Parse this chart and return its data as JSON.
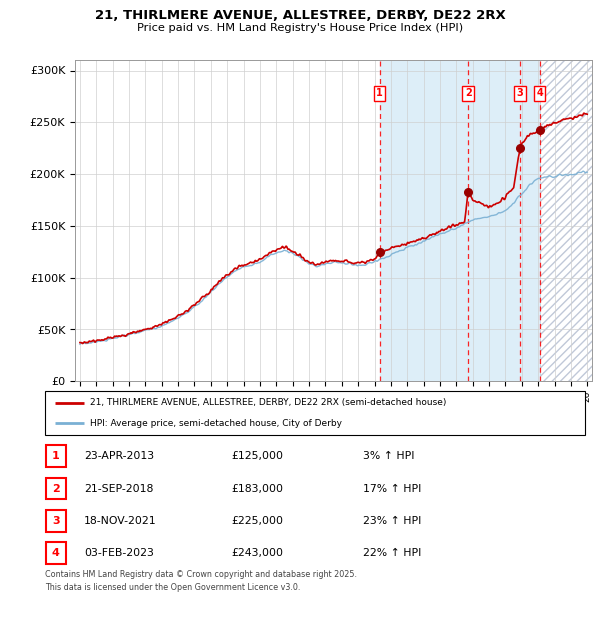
{
  "title1": "21, THIRLMERE AVENUE, ALLESTREE, DERBY, DE22 2RX",
  "title2": "Price paid vs. HM Land Registry's House Price Index (HPI)",
  "ylabel_ticks": [
    "£0",
    "£50K",
    "£100K",
    "£150K",
    "£200K",
    "£250K",
    "£300K"
  ],
  "ytick_vals": [
    0,
    50000,
    100000,
    150000,
    200000,
    250000,
    300000
  ],
  "ylim": [
    0,
    310000
  ],
  "xlim_start": 1994.7,
  "xlim_end": 2026.3,
  "sale_dates": [
    2013.31,
    2018.72,
    2021.88,
    2023.09
  ],
  "sale_prices": [
    125000,
    183000,
    225000,
    243000
  ],
  "sale_labels": [
    "1",
    "2",
    "3",
    "4"
  ],
  "legend_line1": "21, THIRLMERE AVENUE, ALLESTREE, DERBY, DE22 2RX (semi-detached house)",
  "legend_line2": "HPI: Average price, semi-detached house, City of Derby",
  "footnote1": "Contains HM Land Registry data © Crown copyright and database right 2025.",
  "footnote2": "This data is licensed under the Open Government Licence v3.0.",
  "hpi_color": "#7ab0d4",
  "price_color": "#cc0000",
  "shaded_color": "#ddeef8",
  "hatch_edgecolor": "#c0c8d8",
  "table_rows": [
    [
      "1",
      "23-APR-2013",
      "£125,000",
      "3% ↑ HPI"
    ],
    [
      "2",
      "21-SEP-2018",
      "£183,000",
      "17% ↑ HPI"
    ],
    [
      "3",
      "18-NOV-2021",
      "£225,000",
      "23% ↑ HPI"
    ],
    [
      "4",
      "03-FEB-2023",
      "£243,000",
      "22% ↑ HPI"
    ]
  ],
  "hpi_anchors_x": [
    1995.0,
    1995.5,
    1996.0,
    1996.5,
    1997.0,
    1997.5,
    1998.0,
    1998.5,
    1999.0,
    1999.5,
    2000.0,
    2000.5,
    2001.0,
    2001.5,
    2002.0,
    2002.5,
    2003.0,
    2003.5,
    2004.0,
    2004.5,
    2005.0,
    2005.5,
    2006.0,
    2006.5,
    2007.0,
    2007.5,
    2008.0,
    2008.5,
    2009.0,
    2009.5,
    2010.0,
    2010.5,
    2011.0,
    2011.5,
    2012.0,
    2012.5,
    2013.0,
    2013.5,
    2014.0,
    2014.5,
    2015.0,
    2015.5,
    2016.0,
    2016.5,
    2017.0,
    2017.5,
    2018.0,
    2018.5,
    2019.0,
    2019.5,
    2020.0,
    2020.5,
    2021.0,
    2021.5,
    2022.0,
    2022.5,
    2023.0,
    2023.5,
    2024.0,
    2024.5,
    2025.0,
    2025.5,
    2026.0
  ],
  "hpi_anchors_y": [
    36000,
    37000,
    38000,
    39500,
    41000,
    43000,
    45000,
    47000,
    49000,
    51000,
    53000,
    57000,
    61000,
    66000,
    72000,
    79000,
    86000,
    94000,
    101000,
    107000,
    110000,
    112000,
    115000,
    120000,
    124000,
    126000,
    124000,
    119000,
    113000,
    111000,
    113000,
    115000,
    114000,
    113000,
    112000,
    113000,
    115000,
    119000,
    122000,
    126000,
    129000,
    132000,
    135000,
    139000,
    142000,
    145000,
    148000,
    152000,
    155000,
    158000,
    159000,
    161000,
    165000,
    172000,
    181000,
    190000,
    196000,
    197000,
    198000,
    199000,
    200000,
    201000,
    202000
  ],
  "price_anchors_x": [
    1995.0,
    1995.5,
    1996.0,
    1996.5,
    1997.0,
    1997.5,
    1998.0,
    1998.5,
    1999.0,
    1999.5,
    2000.0,
    2000.5,
    2001.0,
    2001.5,
    2002.0,
    2002.5,
    2003.0,
    2003.5,
    2004.0,
    2004.5,
    2005.0,
    2005.5,
    2006.0,
    2006.5,
    2007.0,
    2007.5,
    2008.0,
    2008.5,
    2009.0,
    2009.5,
    2010.0,
    2010.5,
    2011.0,
    2011.5,
    2012.0,
    2012.5,
    2013.0,
    2013.31,
    2013.5,
    2014.0,
    2014.5,
    2015.0,
    2015.5,
    2016.0,
    2016.5,
    2017.0,
    2017.5,
    2018.0,
    2018.5,
    2018.72,
    2019.0,
    2019.5,
    2020.0,
    2020.5,
    2021.0,
    2021.5,
    2021.88,
    2022.0,
    2022.5,
    2023.0,
    2023.09,
    2023.5,
    2024.0,
    2024.5,
    2025.0,
    2025.5,
    2026.0
  ],
  "price_anchors_y": [
    37000,
    38000,
    39000,
    40500,
    42000,
    44000,
    46000,
    48000,
    50000,
    52500,
    55000,
    59000,
    63000,
    68000,
    74000,
    81000,
    88000,
    96000,
    103000,
    109000,
    112000,
    115000,
    118000,
    123000,
    127000,
    130000,
    126000,
    121000,
    115000,
    113000,
    115000,
    117000,
    116000,
    115000,
    114000,
    115000,
    118000,
    125000,
    125000,
    128000,
    131000,
    133000,
    136000,
    138000,
    142000,
    145000,
    148000,
    151000,
    154000,
    183000,
    175000,
    172000,
    168000,
    172000,
    178000,
    188000,
    225000,
    230000,
    238000,
    242000,
    243000,
    247000,
    250000,
    252000,
    254000,
    256000,
    258000
  ]
}
